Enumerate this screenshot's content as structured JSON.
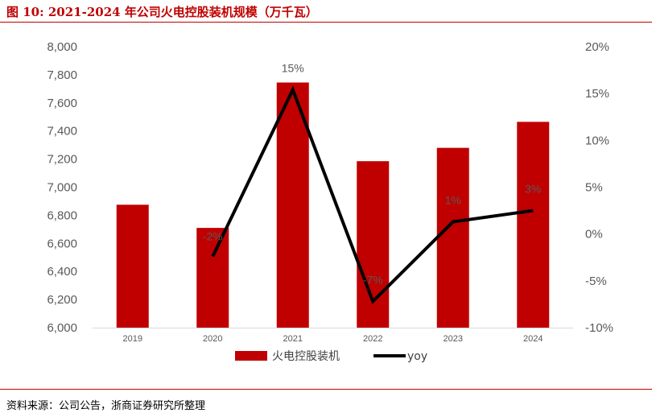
{
  "figure": {
    "title": "图 10:   2021-2024 年公司火电控股装机规模（万千瓦）",
    "source": "资料来源：公司公告，浙商证券研究所整理"
  },
  "chart_data": {
    "type": "bar",
    "categories": [
      "2019",
      "2020",
      "2021",
      "2022",
      "2023",
      "2024"
    ],
    "series": [
      {
        "name": "火电控股装机",
        "type": "bar",
        "axis": "left",
        "color": "#c00000",
        "values": [
          6875,
          6710,
          7745,
          7185,
          7280,
          7465
        ]
      },
      {
        "name": "yoy",
        "type": "line",
        "axis": "right",
        "color": "#000000",
        "values": [
          null,
          -2.4,
          15.4,
          -7.2,
          1.3,
          2.5
        ],
        "data_labels": [
          null,
          "-2%",
          "15%",
          "-7%",
          "1%",
          "3%"
        ]
      }
    ],
    "y_left": {
      "min": 6000,
      "max": 8000,
      "step": 200,
      "tick_labels": [
        "6,000",
        "6,200",
        "6,400",
        "6,600",
        "6,800",
        "7,000",
        "7,200",
        "7,400",
        "7,600",
        "7,800",
        "8,000"
      ]
    },
    "y_right": {
      "min": -10,
      "max": 20,
      "step": 5,
      "tick_labels": [
        "-10%",
        "-5%",
        "0%",
        "5%",
        "10%",
        "15%",
        "20%"
      ]
    },
    "grid": false,
    "legend": "bottom"
  }
}
